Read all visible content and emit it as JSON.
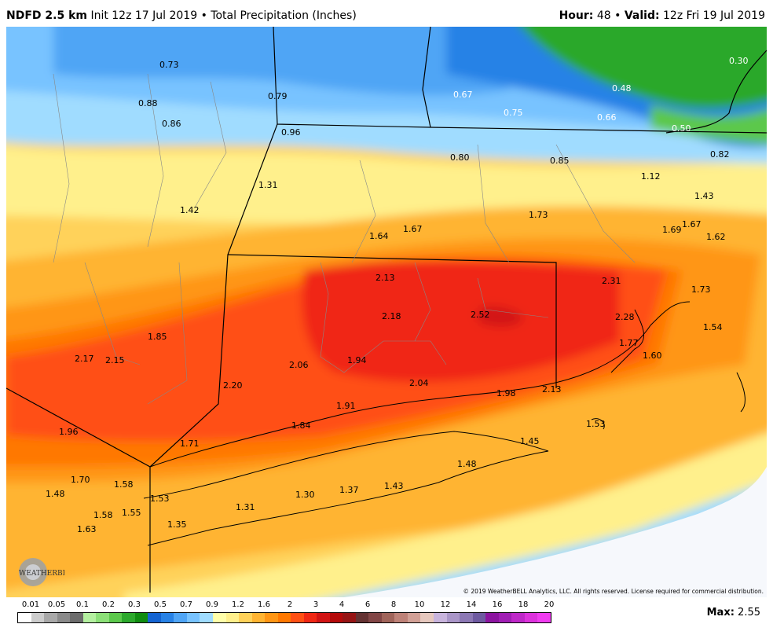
{
  "header": {
    "model": "NDFD 2.5 km",
    "init": "Init 12z 17 Jul 2019",
    "separator": "•",
    "product": "Total Precipitation (Inches)",
    "hour_label": "Hour:",
    "hour_value": "48",
    "valid_label": "Valid:",
    "valid_value": "12z Fri 19 Jul 2019"
  },
  "map": {
    "values": [
      {
        "text": "0.73"
      },
      {
        "text": "0.88"
      },
      {
        "text": "0.86"
      },
      {
        "text": "0.79"
      },
      {
        "text": "0.96"
      },
      {
        "text": "0.67"
      },
      {
        "text": "0.75"
      },
      {
        "text": "0.48"
      },
      {
        "text": "0.66"
      },
      {
        "text": "0.50"
      },
      {
        "text": "0.30"
      },
      {
        "text": "0.82"
      },
      {
        "text": "0.80"
      },
      {
        "text": "0.85"
      },
      {
        "text": "1.12"
      },
      {
        "text": "1.31"
      },
      {
        "text": "1.42"
      },
      {
        "text": "1.43"
      },
      {
        "text": "1.73"
      },
      {
        "text": "1.64"
      },
      {
        "text": "1.67"
      },
      {
        "text": "1.69"
      },
      {
        "text": "1.67"
      },
      {
        "text": "1.62"
      },
      {
        "text": "2.13"
      },
      {
        "text": "2.31"
      },
      {
        "text": "1.73"
      },
      {
        "text": "2.18"
      },
      {
        "text": "2.52"
      },
      {
        "text": "2.28"
      },
      {
        "text": "1.54"
      },
      {
        "text": "1.85"
      },
      {
        "text": "1.77"
      },
      {
        "text": "1.60"
      },
      {
        "text": "2.17"
      },
      {
        "text": "2.15"
      },
      {
        "text": "2.06"
      },
      {
        "text": "1.94"
      },
      {
        "text": "2.20"
      },
      {
        "text": "2.04"
      },
      {
        "text": "1.98"
      },
      {
        "text": "2.13"
      },
      {
        "text": "1.91"
      },
      {
        "text": "1.84"
      },
      {
        "text": "1.53"
      },
      {
        "text": "1.96"
      },
      {
        "text": "1.71"
      },
      {
        "text": "1.45"
      },
      {
        "text": "1.48"
      },
      {
        "text": "1.70"
      },
      {
        "text": "1.58"
      },
      {
        "text": "1.48"
      },
      {
        "text": "1.53"
      },
      {
        "text": "1.43"
      },
      {
        "text": "1.37"
      },
      {
        "text": "1.30"
      },
      {
        "text": "1.31"
      },
      {
        "text": "1.58"
      },
      {
        "text": "1.55"
      },
      {
        "text": "1.35"
      },
      {
        "text": "1.63"
      }
    ],
    "copyright": "© 2019 WeatherBELL Analytics, LLC. All rights reserved. License required for commercial distribution.",
    "logo_text": "WEATHERBELL"
  },
  "legend": {
    "labels": [
      "0.01",
      "0.05",
      "0.1",
      "0.2",
      "0.3",
      "0.5",
      "0.7",
      "0.9",
      "1.2",
      "1.6",
      "2",
      "3",
      "4",
      "6",
      "8",
      "10",
      "12",
      "14",
      "16",
      "18",
      "20"
    ],
    "colors": [
      "#ffffff",
      "#cccccc",
      "#a8a8a8",
      "#8a8a8a",
      "#6c6c6c",
      "#b4f0a0",
      "#8ce078",
      "#5cc84c",
      "#2ca82c",
      "#108c10",
      "#1464d2",
      "#2882e6",
      "#50a5f5",
      "#78c3ff",
      "#a0dcff",
      "#ffffaa",
      "#fff08c",
      "#ffd25a",
      "#ffb432",
      "#ff9614",
      "#ff7800",
      "#ff5014",
      "#f02814",
      "#d21414",
      "#b40a0a",
      "#961414",
      "#643232",
      "#824646",
      "#a0645a",
      "#be8278",
      "#d2a096",
      "#e6c8be",
      "#c8b4dc",
      "#aa96c8",
      "#8c78b4",
      "#6e5aa0",
      "#8c14a0",
      "#a01eb4",
      "#be28c8",
      "#dc32dc",
      "#f03cf0"
    ],
    "max_label": "Max:",
    "max_value": "2.55"
  }
}
